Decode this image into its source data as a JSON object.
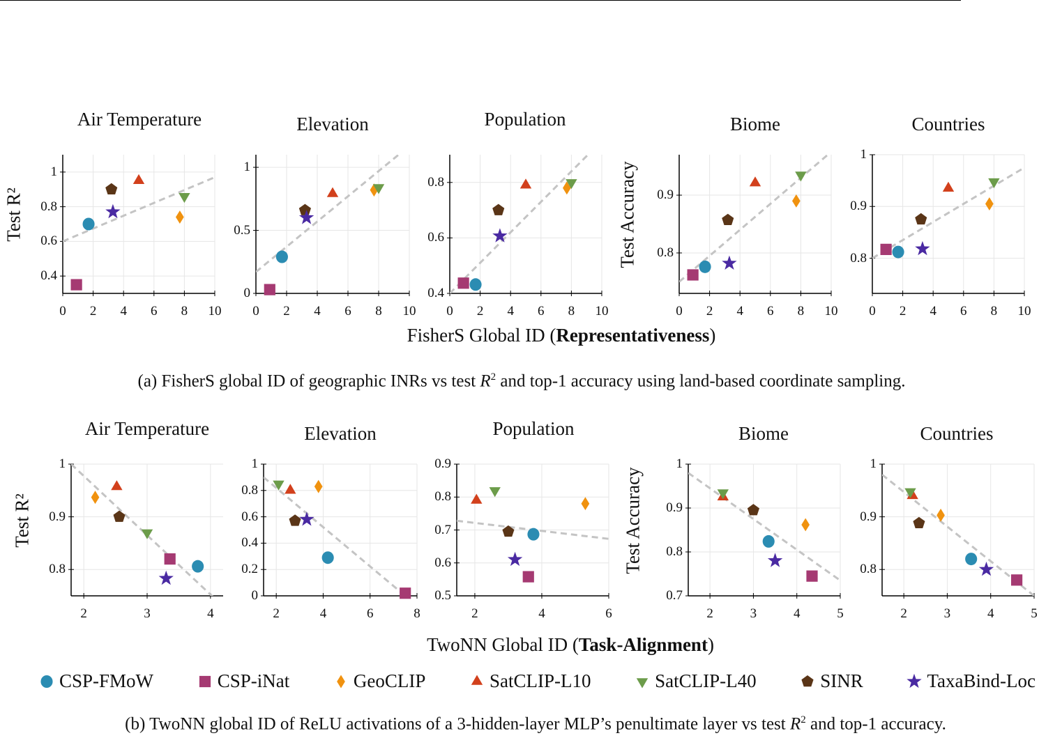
{
  "figure": {
    "top_xlabel": {
      "prefix": "FisherS Global ID (",
      "bold": "Representativeness",
      "suffix": ")"
    },
    "bottom_xlabel": {
      "prefix": "TwoNN Global ID (",
      "bold": "Task-Alignment",
      "suffix": ")"
    },
    "caption_a": {
      "prefix": "(a) FisherS global ID of geographic INRs vs test ",
      "math": "R",
      "sup": "2",
      "suffix": " and top-1 accuracy using land-based coordinate sampling."
    },
    "caption_b": {
      "prefix": "(b) TwoNN global ID of ReLU activations of a 3-hidden-layer MLP’s penultimate layer vs test ",
      "math": "R",
      "sup": "2",
      "suffix": " and top-1 accuracy."
    },
    "legend": [
      {
        "name": "CSP-FMoW",
        "marker": "circle",
        "color": "#2b8cb2"
      },
      {
        "name": "CSP-iNat",
        "marker": "square",
        "color": "#a53a72"
      },
      {
        "name": "GeoCLIP",
        "marker": "diamond",
        "color": "#f0920f"
      },
      {
        "name": "SatCLIP-L10",
        "marker": "triangle-up",
        "color": "#d2401c"
      },
      {
        "name": "SatCLIP-L40",
        "marker": "triangle-down",
        "color": "#6c9c4a"
      },
      {
        "name": "SINR",
        "marker": "pentagon",
        "color": "#5a3517"
      },
      {
        "name": "TaxaBind-Loc",
        "marker": "star",
        "color": "#4a2aa2"
      }
    ]
  },
  "chart_data": [
    {
      "type": "scatter",
      "row": "a",
      "title": "Air Temperature",
      "ylabel": "Test R²",
      "xlim": [
        0,
        10
      ],
      "ylim": [
        0.3,
        1.1
      ],
      "xticks": [
        0,
        2,
        4,
        6,
        8,
        10
      ],
      "yticks": [
        0.4,
        0.6,
        0.8,
        1
      ],
      "ytick_labels": [
        "0.4",
        "0.6",
        "0.8",
        "1"
      ],
      "grid": true,
      "x": [
        1.7,
        0.9,
        7.7,
        5.0,
        8.0,
        3.2,
        3.3
      ],
      "y": [
        0.7,
        0.35,
        0.74,
        0.95,
        0.86,
        0.9,
        0.77
      ],
      "trend": {
        "x": [
          0,
          10
        ],
        "y": [
          0.6,
          0.97
        ]
      }
    },
    {
      "type": "scatter",
      "row": "a",
      "title": "Elevation",
      "ylabel": "",
      "xlim": [
        0,
        10
      ],
      "ylim": [
        0,
        1.1
      ],
      "xticks": [
        0,
        2,
        4,
        6,
        8,
        10
      ],
      "yticks": [
        0,
        0.5,
        1
      ],
      "ytick_labels": [
        "0",
        "0.5",
        "1"
      ],
      "grid": true,
      "x": [
        1.7,
        0.9,
        7.7,
        5.0,
        8.0,
        3.2,
        3.3
      ],
      "y": [
        0.29,
        0.03,
        0.82,
        0.79,
        0.84,
        0.66,
        0.6
      ],
      "trend": {
        "x": [
          0,
          10
        ],
        "y": [
          0.17,
          1.17
        ]
      }
    },
    {
      "type": "scatter",
      "row": "a",
      "title": "Population",
      "ylabel": "",
      "xlim": [
        0,
        10
      ],
      "ylim": [
        0.4,
        0.9
      ],
      "xticks": [
        0,
        2,
        4,
        6,
        8,
        10
      ],
      "yticks": [
        0.4,
        0.6,
        0.8
      ],
      "ytick_labels": [
        "0.4",
        "0.6",
        "0.8"
      ],
      "grid": true,
      "x": [
        1.7,
        0.9,
        7.7,
        5.0,
        8.0,
        3.2,
        3.3
      ],
      "y": [
        0.432,
        0.437,
        0.78,
        0.79,
        0.8,
        0.7,
        0.607
      ],
      "trend": {
        "x": [
          0,
          10
        ],
        "y": [
          0.4,
          0.95
        ]
      }
    },
    {
      "type": "scatter",
      "row": "a",
      "title": "Biome",
      "ylabel": "Test Accuracy",
      "xlim": [
        0,
        10
      ],
      "ylim": [
        0.73,
        0.97
      ],
      "xticks": [
        0,
        2,
        4,
        6,
        8,
        10
      ],
      "yticks": [
        0.8,
        0.9
      ],
      "ytick_labels": [
        "0.8",
        "0.9"
      ],
      "grid": true,
      "x": [
        1.7,
        0.9,
        7.7,
        5.0,
        8.0,
        3.2,
        3.3
      ],
      "y": [
        0.776,
        0.762,
        0.89,
        0.921,
        0.935,
        0.857,
        0.782
      ],
      "trend": {
        "x": [
          0,
          10
        ],
        "y": [
          0.75,
          0.975
        ]
      }
    },
    {
      "type": "scatter",
      "row": "a",
      "title": "Countries",
      "ylabel": "",
      "xlim": [
        0,
        10
      ],
      "ylim": [
        0.732,
        1.0
      ],
      "xticks": [
        0,
        2,
        4,
        6,
        8,
        10
      ],
      "yticks": [
        0.8,
        0.9,
        1
      ],
      "ytick_labels": [
        "0.8",
        "0.9",
        "1"
      ],
      "grid": true,
      "x": [
        1.7,
        0.9,
        7.7,
        5.0,
        8.0,
        3.2,
        3.3
      ],
      "y": [
        0.812,
        0.817,
        0.905,
        0.935,
        0.948,
        0.875,
        0.818
      ],
      "trend": {
        "x": [
          0,
          10
        ],
        "y": [
          0.8,
          0.975
        ]
      }
    },
    {
      "type": "scatter",
      "row": "b",
      "title": "Air Temperature",
      "ylabel": "Test R²",
      "xlim": [
        1.8,
        4.2
      ],
      "ylim": [
        0.75,
        1.0
      ],
      "xticks": [
        2,
        3,
        4
      ],
      "yticks": [
        0.8,
        0.9,
        1
      ],
      "ytick_labels": [
        "0.8",
        "0.9",
        "1"
      ],
      "grid": true,
      "x": [
        3.8,
        3.36,
        2.18,
        2.52,
        3.0,
        2.56,
        3.3
      ],
      "y": [
        0.806,
        0.82,
        0.937,
        0.957,
        0.87,
        0.9,
        0.783
      ],
      "trend": {
        "x": [
          1.8,
          4.2
        ],
        "y": [
          1.0,
          0.73
        ]
      }
    },
    {
      "type": "scatter",
      "row": "b",
      "title": "Elevation",
      "ylabel": "",
      "xlim": [
        1.46,
        8
      ],
      "ylim": [
        0,
        1
      ],
      "xticks": [
        2,
        4,
        6,
        8
      ],
      "yticks": [
        0,
        0.2,
        0.4,
        0.6,
        0.8,
        1
      ],
      "ytick_labels": [
        "0",
        "0.2",
        "0.4",
        "0.6",
        "0.8",
        "1"
      ],
      "grid": true,
      "x": [
        4.2,
        7.5,
        3.8,
        2.6,
        2.1,
        2.8,
        3.3
      ],
      "y": [
        0.29,
        0.02,
        0.83,
        0.8,
        0.85,
        0.57,
        0.58
      ],
      "trend": {
        "x": [
          1.46,
          7.5
        ],
        "y": [
          0.9,
          0.0
        ]
      }
    },
    {
      "type": "scatter",
      "row": "b",
      "title": "Population",
      "ylabel": "",
      "xlim": [
        1.46,
        6
      ],
      "ylim": [
        0.5,
        0.9
      ],
      "xticks": [
        2,
        4,
        6
      ],
      "yticks": [
        0.5,
        0.6,
        0.7,
        0.8,
        0.9
      ],
      "ytick_labels": [
        "0.5",
        "0.6",
        "0.7",
        "0.8",
        "0.9"
      ],
      "grid": true,
      "x": [
        3.75,
        3.6,
        5.3,
        2.05,
        2.6,
        3.0,
        3.2
      ],
      "y": [
        0.687,
        0.558,
        0.78,
        0.79,
        0.82,
        0.695,
        0.61
      ],
      "trend": {
        "x": [
          1.46,
          6
        ],
        "y": [
          0.728,
          0.673
        ]
      }
    },
    {
      "type": "scatter",
      "row": "b",
      "title": "Biome",
      "ylabel": "Test Accuracy",
      "xlim": [
        1.5,
        5
      ],
      "ylim": [
        0.7,
        1.0
      ],
      "xticks": [
        2,
        3,
        4,
        5
      ],
      "yticks": [
        0.7,
        0.8,
        0.9,
        1
      ],
      "ytick_labels": [
        "0.7",
        "0.8",
        "0.9",
        "1"
      ],
      "grid": true,
      "x": [
        3.35,
        4.35,
        4.2,
        2.3,
        2.3,
        3.0,
        3.5
      ],
      "y": [
        0.824,
        0.745,
        0.862,
        0.925,
        0.935,
        0.895,
        0.78
      ],
      "trend": {
        "x": [
          1.5,
          5
        ],
        "y": [
          0.98,
          0.735
        ]
      }
    },
    {
      "type": "scatter",
      "row": "b",
      "title": "Countries",
      "ylabel": "",
      "xlim": [
        1.5,
        5
      ],
      "ylim": [
        0.75,
        1.0
      ],
      "xticks": [
        2,
        3,
        4,
        5
      ],
      "yticks": [
        0.8,
        0.9,
        1
      ],
      "ytick_labels": [
        "0.8",
        "0.9",
        "1"
      ],
      "grid": true,
      "x": [
        3.55,
        4.6,
        2.85,
        2.2,
        2.15,
        2.35,
        3.9
      ],
      "y": [
        0.82,
        0.78,
        0.903,
        0.94,
        0.948,
        0.888,
        0.8
      ],
      "trend": {
        "x": [
          1.5,
          5
        ],
        "y": [
          0.98,
          0.75
        ]
      }
    }
  ]
}
